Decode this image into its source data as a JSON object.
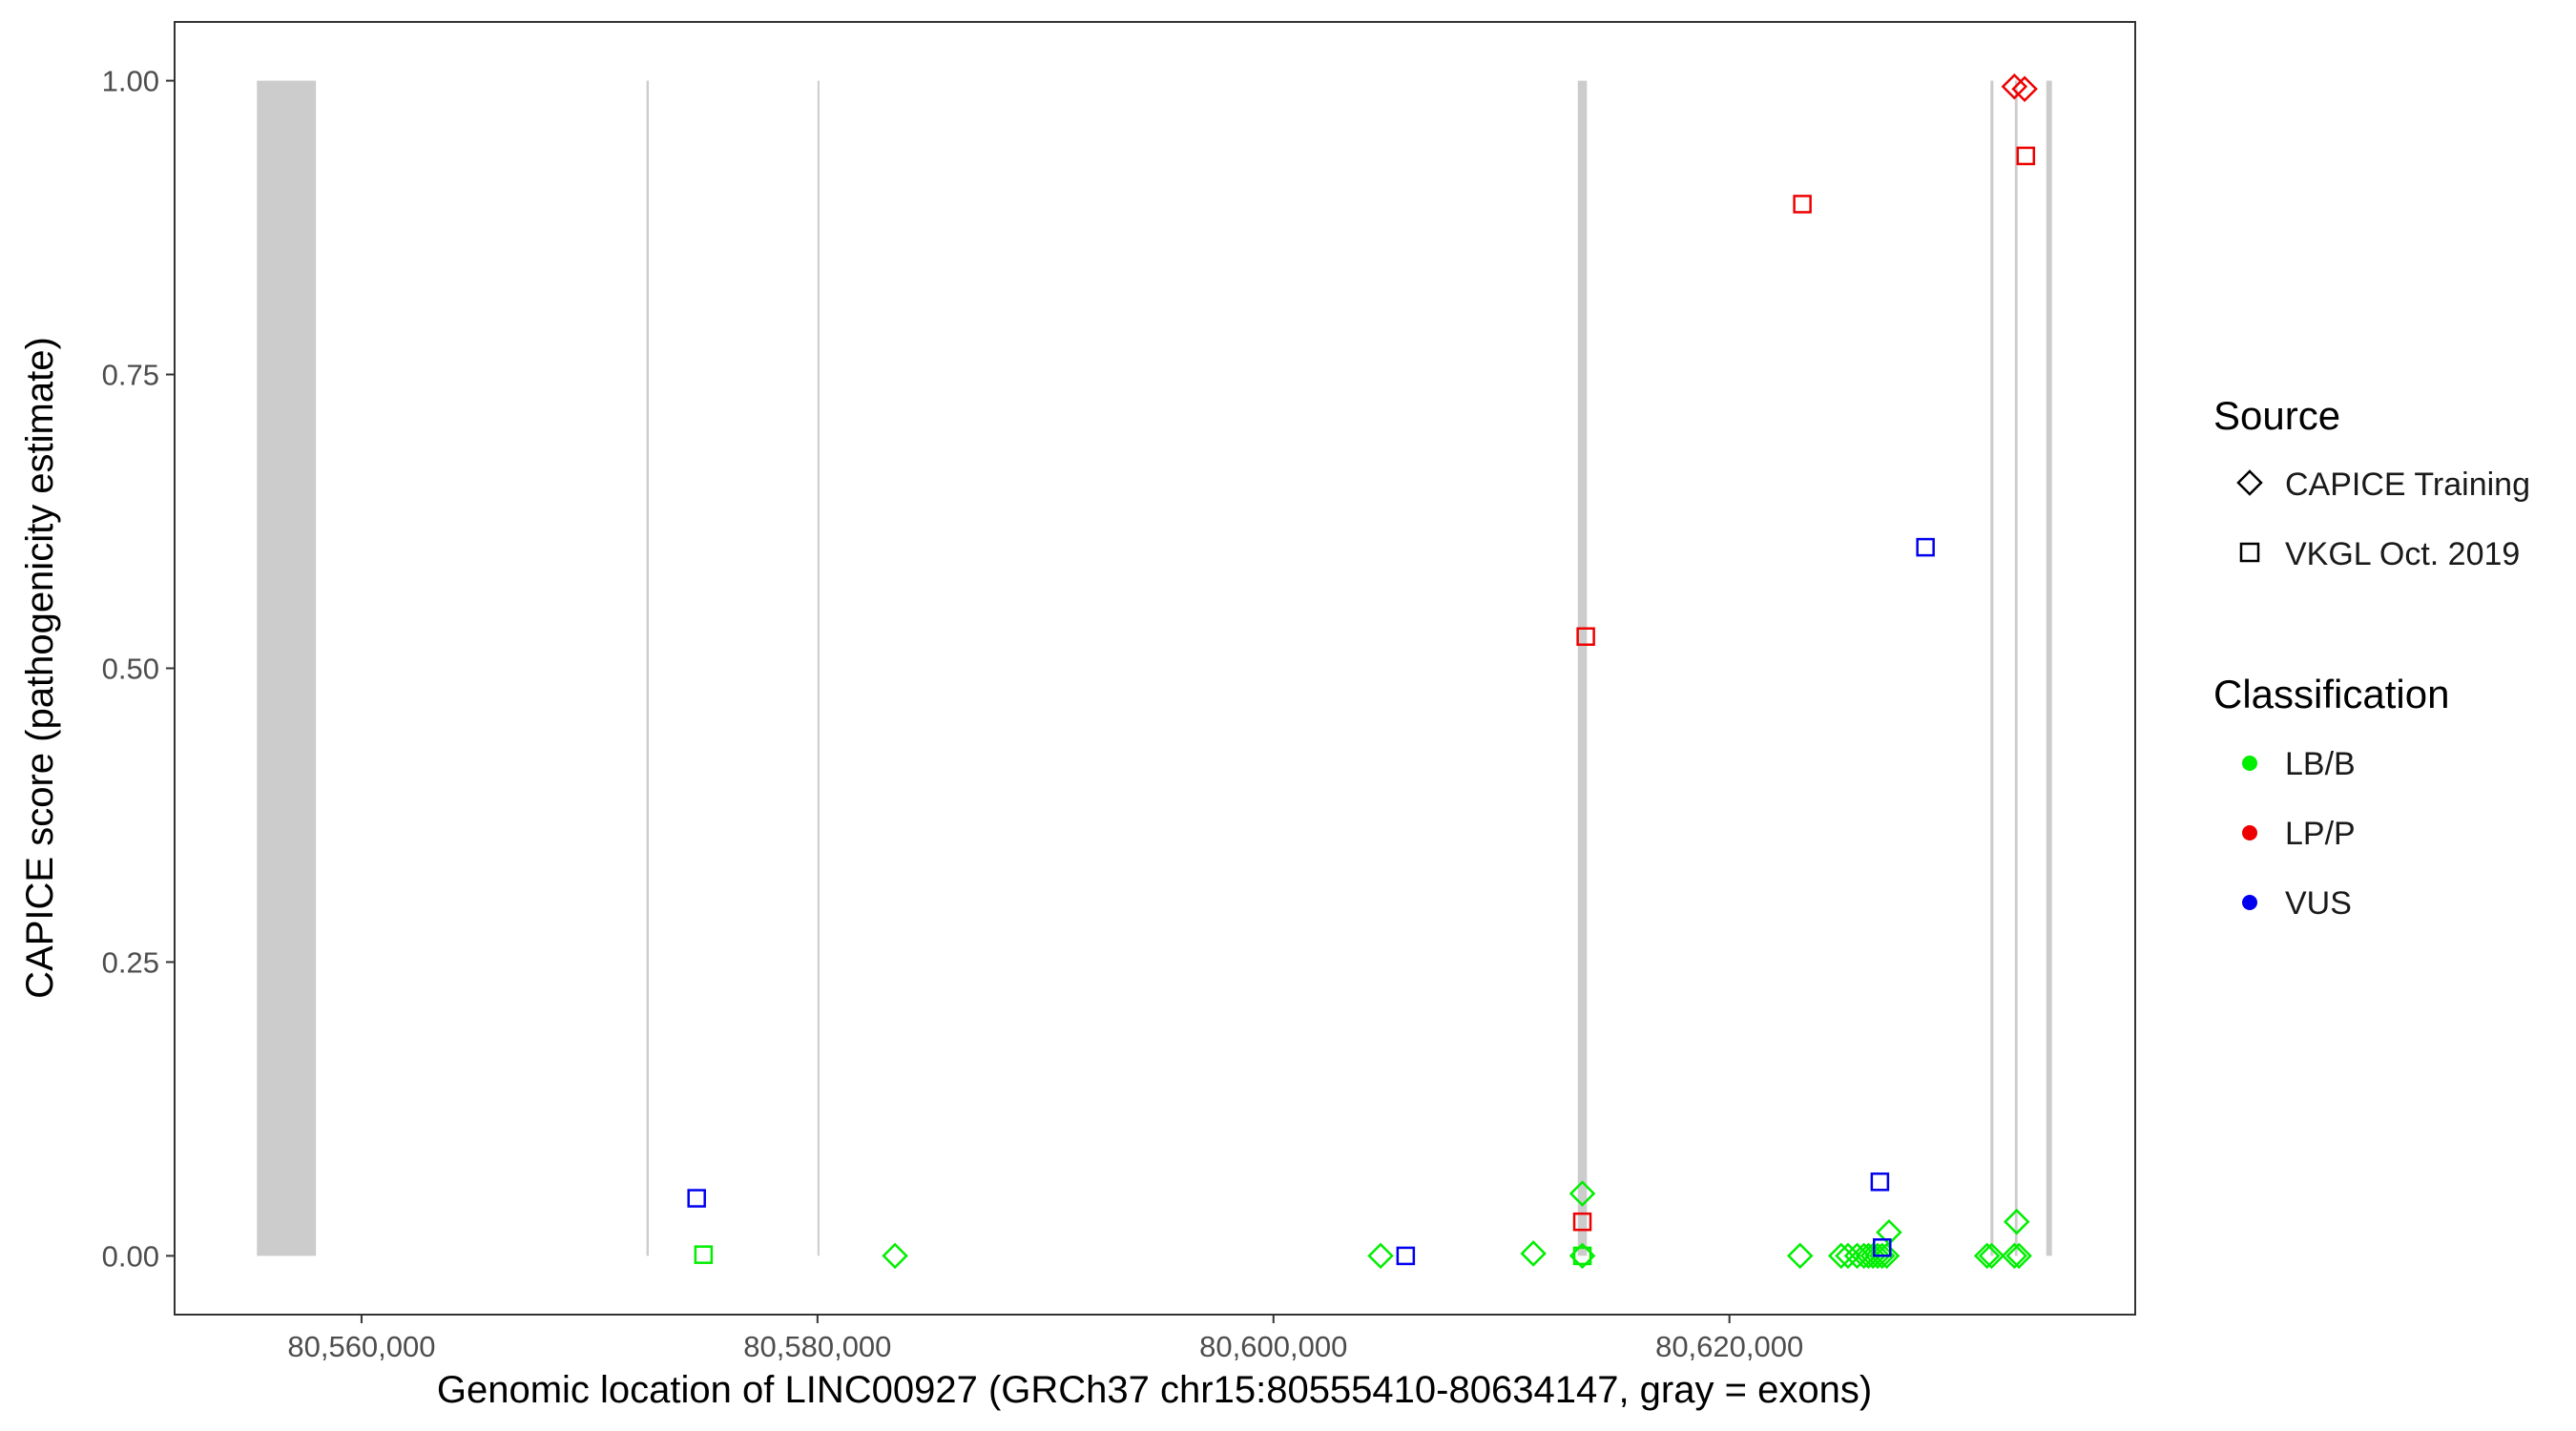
{
  "chart_data": {
    "type": "scatter",
    "title": "",
    "xlabel": "Genomic location of LINC00927 (GRCh37 chr15:80555410-80634147, gray = exons)",
    "ylabel": "CAPICE score (pathogenicity estimate)",
    "xlim": [
      80551800,
      80637800
    ],
    "ylim": [
      -0.05,
      1.05
    ],
    "x_ticks": [
      80560000,
      80580000,
      80600000,
      80620000
    ],
    "x_tick_labels": [
      "80,560,000",
      "80,580,000",
      "80,600,000",
      "80,620,000"
    ],
    "y_ticks": [
      0,
      0.25,
      0.5,
      0.75,
      1.0
    ],
    "y_tick_labels": [
      "0.00",
      "0.25",
      "0.50",
      "0.75",
      "1.00"
    ],
    "grid": false,
    "legend_position": "right",
    "exons": [
      {
        "start": 80555410,
        "end": 80558000
      },
      {
        "start": 80572500,
        "end": 80572600
      },
      {
        "start": 80580000,
        "end": 80580080
      },
      {
        "start": 80613350,
        "end": 80613750
      },
      {
        "start": 80631450,
        "end": 80631580
      },
      {
        "start": 80632520,
        "end": 80632640
      },
      {
        "start": 80633900,
        "end": 80634147
      }
    ],
    "legend": {
      "source_title": "Source",
      "source_items": [
        {
          "label": "CAPICE Training",
          "shape": "diamond"
        },
        {
          "label": "VKGL Oct. 2019",
          "shape": "square"
        }
      ],
      "class_title": "Classification",
      "class_items": [
        {
          "label": "LB/B",
          "color": "#00ee00"
        },
        {
          "label": "LP/P",
          "color": "#ee0000"
        },
        {
          "label": "VUS",
          "color": "#0000ee"
        }
      ]
    },
    "colors": {
      "LB/B": "#00ee00",
      "LP/P": "#ee0000",
      "VUS": "#0000ee",
      "exon": "#cccccc"
    },
    "points": [
      {
        "x": 80574700,
        "y": 0.049,
        "source": "VKGL Oct. 2019",
        "class": "VUS"
      },
      {
        "x": 80575000,
        "y": 0.001,
        "source": "VKGL Oct. 2019",
        "class": "LB/B"
      },
      {
        "x": 80583400,
        "y": 0.0,
        "source": "CAPICE Training",
        "class": "LB/B"
      },
      {
        "x": 80604700,
        "y": 0.0,
        "source": "CAPICE Training",
        "class": "LB/B"
      },
      {
        "x": 80605800,
        "y": 0.0,
        "source": "VKGL Oct. 2019",
        "class": "VUS"
      },
      {
        "x": 80611400,
        "y": 0.002,
        "source": "CAPICE Training",
        "class": "LB/B"
      },
      {
        "x": 80613550,
        "y": 0.053,
        "source": "CAPICE Training",
        "class": "LB/B"
      },
      {
        "x": 80613550,
        "y": 0.0,
        "source": "CAPICE Training",
        "class": "LB/B"
      },
      {
        "x": 80613550,
        "y": 0.0,
        "source": "VKGL Oct. 2019",
        "class": "LB/B"
      },
      {
        "x": 80613550,
        "y": 0.029,
        "source": "VKGL Oct. 2019",
        "class": "LP/P"
      },
      {
        "x": 80613700,
        "y": 0.527,
        "source": "VKGL Oct. 2019",
        "class": "LP/P"
      },
      {
        "x": 80623100,
        "y": 0.0,
        "source": "CAPICE Training",
        "class": "LB/B"
      },
      {
        "x": 80623200,
        "y": 0.895,
        "source": "VKGL Oct. 2019",
        "class": "LP/P"
      },
      {
        "x": 80624900,
        "y": 0.0,
        "source": "CAPICE Training",
        "class": "LB/B"
      },
      {
        "x": 80625200,
        "y": 0.0,
        "source": "CAPICE Training",
        "class": "LB/B"
      },
      {
        "x": 80625600,
        "y": 0.0,
        "source": "CAPICE Training",
        "class": "LB/B"
      },
      {
        "x": 80625900,
        "y": 0.0,
        "source": "CAPICE Training",
        "class": "LB/B"
      },
      {
        "x": 80626100,
        "y": 0.0,
        "source": "CAPICE Training",
        "class": "LB/B"
      },
      {
        "x": 80626300,
        "y": 0.0,
        "source": "CAPICE Training",
        "class": "LB/B"
      },
      {
        "x": 80626500,
        "y": 0.0,
        "source": "CAPICE Training",
        "class": "LB/B"
      },
      {
        "x": 80626700,
        "y": 0.0,
        "source": "CAPICE Training",
        "class": "LB/B"
      },
      {
        "x": 80626900,
        "y": 0.0,
        "source": "CAPICE Training",
        "class": "LB/B"
      },
      {
        "x": 80627000,
        "y": 0.02,
        "source": "CAPICE Training",
        "class": "LB/B"
      },
      {
        "x": 80626600,
        "y": 0.063,
        "source": "VKGL Oct. 2019",
        "class": "VUS"
      },
      {
        "x": 80626700,
        "y": 0.007,
        "source": "VKGL Oct. 2019",
        "class": "VUS"
      },
      {
        "x": 80628600,
        "y": 0.603,
        "source": "VKGL Oct. 2019",
        "class": "VUS"
      },
      {
        "x": 80631300,
        "y": 0.0,
        "source": "CAPICE Training",
        "class": "LB/B"
      },
      {
        "x": 80631500,
        "y": 0.0,
        "source": "CAPICE Training",
        "class": "LB/B"
      },
      {
        "x": 80632500,
        "y": 0.0,
        "source": "CAPICE Training",
        "class": "LB/B"
      },
      {
        "x": 80632700,
        "y": 0.0,
        "source": "CAPICE Training",
        "class": "LB/B"
      },
      {
        "x": 80632600,
        "y": 0.029,
        "source": "CAPICE Training",
        "class": "LB/B"
      },
      {
        "x": 80632500,
        "y": 0.995,
        "source": "CAPICE Training",
        "class": "LP/P"
      },
      {
        "x": 80632950,
        "y": 0.993,
        "source": "CAPICE Training",
        "class": "LP/P"
      },
      {
        "x": 80633000,
        "y": 0.936,
        "source": "VKGL Oct. 2019",
        "class": "LP/P"
      }
    ]
  }
}
